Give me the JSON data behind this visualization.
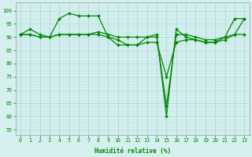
{
  "xlabel": "Humidité relative (%)",
  "background_color": "#d6f0f0",
  "line_color": "#008800",
  "marker": "D",
  "markersize": 2.0,
  "linewidth": 0.9,
  "xlim": [
    -0.5,
    23.5
  ],
  "ylim": [
    53,
    103
  ],
  "yticks": [
    55,
    60,
    65,
    70,
    75,
    80,
    85,
    90,
    95,
    100
  ],
  "xticks": [
    0,
    1,
    2,
    3,
    4,
    5,
    6,
    7,
    8,
    9,
    10,
    11,
    12,
    13,
    14,
    15,
    16,
    17,
    18,
    19,
    20,
    21,
    22,
    23
  ],
  "grid_color": "#b0d8d8",
  "series": [
    [
      91,
      93,
      91,
      90,
      97,
      99,
      98,
      98,
      98,
      90,
      89,
      87,
      87,
      90,
      91,
      60,
      93,
      90,
      89,
      88,
      88,
      90,
      97,
      97
    ],
    [
      91,
      91,
      90,
      90,
      91,
      91,
      91,
      91,
      92,
      91,
      90,
      90,
      90,
      90,
      90,
      64,
      91,
      91,
      90,
      89,
      89,
      90,
      91,
      91
    ],
    [
      91,
      91,
      90,
      90,
      91,
      91,
      91,
      91,
      91,
      90,
      87,
      87,
      87,
      88,
      88,
      75,
      88,
      89,
      89,
      88,
      88,
      89,
      91,
      97
    ]
  ],
  "xlabel_fontsize": 5.5,
  "tick_fontsize": 4.8,
  "xlabel_color": "#008800"
}
